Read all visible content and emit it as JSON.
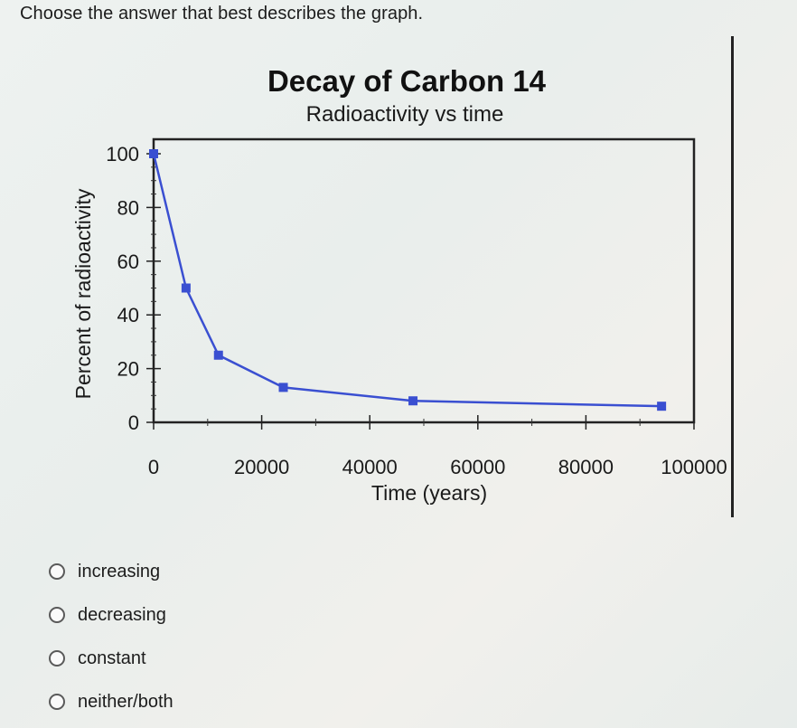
{
  "question": "Choose the answer that best describes the graph.",
  "chart_data": {
    "type": "line",
    "title": "Decay of Carbon 14",
    "subtitle": "Radioactivity vs time",
    "xlabel": "Time (years)",
    "ylabel": "Percent of radioactivity",
    "xlim": [
      0,
      100000
    ],
    "ylim": [
      0,
      100
    ],
    "x_ticks": [
      "0",
      "20000",
      "40000",
      "60000",
      "80000",
      "100000"
    ],
    "y_ticks": [
      "0",
      "20",
      "40",
      "60",
      "80",
      "100"
    ],
    "series": [
      {
        "color": "#3a4fd1",
        "points": [
          {
            "x": 0,
            "y": 100
          },
          {
            "x": 6000,
            "y": 50
          },
          {
            "x": 12000,
            "y": 25
          },
          {
            "x": 24000,
            "y": 13
          },
          {
            "x": 48000,
            "y": 8
          },
          {
            "x": 94000,
            "y": 6
          }
        ]
      }
    ]
  },
  "options": [
    {
      "label": "increasing"
    },
    {
      "label": "decreasing"
    },
    {
      "label": "constant"
    },
    {
      "label": "neither/both"
    }
  ]
}
